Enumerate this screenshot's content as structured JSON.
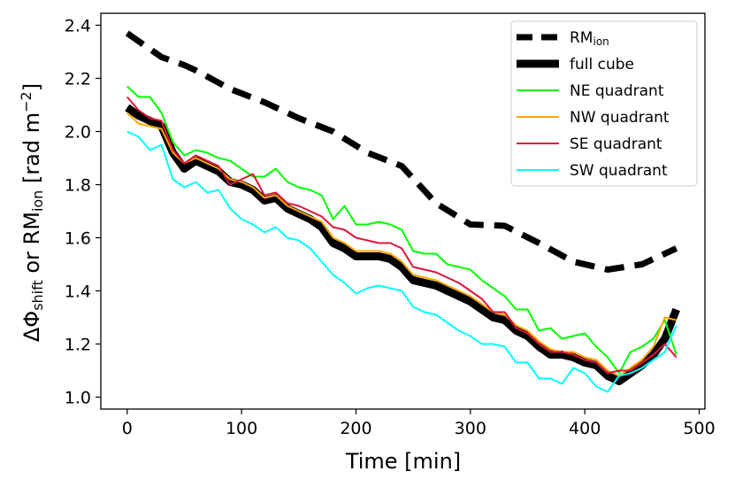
{
  "chart_data": {
    "type": "line",
    "title": "",
    "xlabel": "Time [min]",
    "ylabel": {
      "main1": "ΔΦ",
      "sub1": "shift",
      "mid": " or RM",
      "sub2": "ion",
      "end": " [rad m",
      "sup": "−2",
      "close": "]"
    },
    "xlim": [
      -23,
      505
    ],
    "ylim": [
      0.955,
      2.445
    ],
    "xticks": [
      0,
      100,
      200,
      300,
      400,
      500
    ],
    "yticks": [
      1.0,
      1.2,
      1.4,
      1.6,
      1.8,
      2.0,
      2.2,
      2.4
    ],
    "ytick_labels": [
      "1.0",
      "1.2",
      "1.4",
      "1.6",
      "1.8",
      "2.0",
      "2.2",
      "2.4"
    ],
    "legend_position": "top-right",
    "series": [
      {
        "name": "RM",
        "name_sub": "ion",
        "color": "#000000",
        "style": "dashed-thick",
        "x": [
          0,
          30,
          50,
          60,
          90,
          120,
          150,
          180,
          210,
          240,
          270,
          300,
          330,
          360,
          390,
          420,
          450,
          480
        ],
        "y": [
          2.37,
          2.28,
          2.25,
          2.23,
          2.16,
          2.11,
          2.05,
          2.0,
          1.92,
          1.87,
          1.73,
          1.65,
          1.645,
          1.58,
          1.51,
          1.48,
          1.5,
          1.56
        ]
      },
      {
        "name": "full cube",
        "color": "#000000",
        "style": "solid-thick",
        "x": [
          0,
          10,
          20,
          30,
          40,
          50,
          60,
          70,
          80,
          90,
          100,
          110,
          120,
          130,
          140,
          150,
          160,
          170,
          180,
          190,
          200,
          210,
          220,
          230,
          240,
          250,
          260,
          270,
          280,
          290,
          300,
          310,
          320,
          330,
          340,
          350,
          360,
          370,
          380,
          390,
          400,
          410,
          420,
          430,
          440,
          450,
          460,
          470,
          480
        ],
        "y": [
          2.09,
          2.06,
          2.04,
          2.02,
          1.92,
          1.86,
          1.89,
          1.87,
          1.85,
          1.81,
          1.8,
          1.78,
          1.74,
          1.75,
          1.71,
          1.69,
          1.67,
          1.64,
          1.58,
          1.56,
          1.53,
          1.53,
          1.53,
          1.52,
          1.49,
          1.44,
          1.43,
          1.42,
          1.4,
          1.38,
          1.36,
          1.33,
          1.3,
          1.29,
          1.25,
          1.23,
          1.19,
          1.16,
          1.16,
          1.15,
          1.13,
          1.12,
          1.08,
          1.06,
          1.09,
          1.12,
          1.16,
          1.22,
          1.33
        ]
      },
      {
        "name": "NE quadrant",
        "color": "#00ff00",
        "style": "solid",
        "x": [
          0,
          10,
          20,
          30,
          40,
          50,
          60,
          70,
          80,
          90,
          100,
          110,
          120,
          130,
          140,
          150,
          160,
          170,
          180,
          190,
          200,
          210,
          220,
          230,
          240,
          250,
          260,
          270,
          280,
          290,
          300,
          310,
          320,
          330,
          340,
          350,
          360,
          370,
          380,
          390,
          400,
          410,
          420,
          430,
          440,
          450,
          460,
          470,
          480
        ],
        "y": [
          2.17,
          2.13,
          2.13,
          2.07,
          1.96,
          1.91,
          1.93,
          1.92,
          1.9,
          1.89,
          1.86,
          1.83,
          1.83,
          1.86,
          1.81,
          1.79,
          1.78,
          1.76,
          1.67,
          1.72,
          1.65,
          1.65,
          1.66,
          1.65,
          1.63,
          1.55,
          1.54,
          1.54,
          1.5,
          1.49,
          1.48,
          1.44,
          1.41,
          1.38,
          1.33,
          1.33,
          1.25,
          1.26,
          1.22,
          1.23,
          1.24,
          1.19,
          1.15,
          1.09,
          1.17,
          1.19,
          1.22,
          1.29,
          1.16
        ]
      },
      {
        "name": "NW quadrant",
        "color": "#ffa500",
        "style": "solid",
        "x": [
          0,
          10,
          20,
          30,
          40,
          50,
          60,
          70,
          80,
          90,
          100,
          110,
          120,
          130,
          140,
          150,
          160,
          170,
          180,
          190,
          200,
          210,
          220,
          230,
          240,
          250,
          260,
          270,
          280,
          290,
          300,
          310,
          320,
          330,
          340,
          350,
          360,
          370,
          380,
          390,
          400,
          410,
          420,
          430,
          440,
          450,
          460,
          470,
          480
        ],
        "y": [
          2.07,
          2.03,
          2.02,
          2.01,
          1.92,
          1.88,
          1.9,
          1.88,
          1.86,
          1.82,
          1.81,
          1.79,
          1.75,
          1.76,
          1.72,
          1.7,
          1.68,
          1.66,
          1.6,
          1.58,
          1.55,
          1.55,
          1.55,
          1.54,
          1.51,
          1.46,
          1.45,
          1.44,
          1.42,
          1.4,
          1.38,
          1.35,
          1.32,
          1.31,
          1.27,
          1.25,
          1.21,
          1.18,
          1.17,
          1.17,
          1.15,
          1.14,
          1.1,
          1.08,
          1.11,
          1.14,
          1.19,
          1.3,
          1.29
        ]
      },
      {
        "name": "SE quadrant",
        "color": "#dc143c",
        "style": "solid",
        "x": [
          0,
          10,
          20,
          30,
          40,
          50,
          60,
          70,
          80,
          90,
          100,
          110,
          120,
          130,
          140,
          150,
          160,
          170,
          180,
          190,
          200,
          210,
          220,
          230,
          240,
          250,
          260,
          270,
          280,
          290,
          300,
          310,
          320,
          330,
          340,
          350,
          360,
          370,
          380,
          390,
          400,
          410,
          420,
          430,
          440,
          450,
          460,
          470,
          480
        ],
        "y": [
          2.13,
          2.08,
          2.05,
          2.04,
          1.93,
          1.88,
          1.91,
          1.89,
          1.87,
          1.8,
          1.82,
          1.84,
          1.76,
          1.77,
          1.73,
          1.72,
          1.7,
          1.68,
          1.64,
          1.63,
          1.6,
          1.59,
          1.58,
          1.58,
          1.56,
          1.49,
          1.48,
          1.47,
          1.45,
          1.43,
          1.4,
          1.37,
          1.32,
          1.32,
          1.26,
          1.24,
          1.2,
          1.17,
          1.17,
          1.16,
          1.14,
          1.13,
          1.09,
          1.1,
          1.1,
          1.13,
          1.16,
          1.2,
          1.15
        ]
      },
      {
        "name": "SW quadrant",
        "color": "#00ffff",
        "style": "solid",
        "x": [
          0,
          10,
          20,
          30,
          40,
          50,
          60,
          70,
          80,
          90,
          100,
          110,
          120,
          130,
          140,
          150,
          160,
          170,
          180,
          190,
          200,
          210,
          220,
          230,
          240,
          250,
          260,
          270,
          280,
          290,
          300,
          310,
          320,
          330,
          340,
          350,
          360,
          370,
          380,
          390,
          400,
          410,
          420,
          430,
          440,
          450,
          460,
          470,
          480
        ],
        "y": [
          2.0,
          1.98,
          1.93,
          1.95,
          1.82,
          1.79,
          1.81,
          1.77,
          1.78,
          1.71,
          1.67,
          1.65,
          1.62,
          1.64,
          1.6,
          1.59,
          1.56,
          1.51,
          1.46,
          1.43,
          1.39,
          1.41,
          1.42,
          1.41,
          1.4,
          1.34,
          1.32,
          1.31,
          1.28,
          1.25,
          1.23,
          1.2,
          1.2,
          1.19,
          1.13,
          1.13,
          1.07,
          1.07,
          1.05,
          1.11,
          1.09,
          1.04,
          1.02,
          1.08,
          1.09,
          1.11,
          1.14,
          1.17,
          1.27
        ]
      }
    ]
  }
}
